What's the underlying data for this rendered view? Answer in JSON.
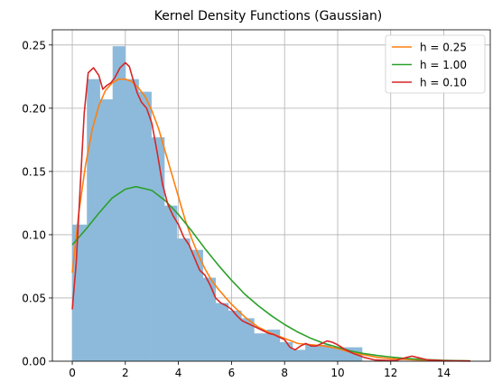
{
  "chart_data": {
    "type": "histogram+line",
    "title": "Kernel Density Functions (Gaussian)",
    "xlabel": "",
    "ylabel": "",
    "xlim": [
      -0.75,
      15.75
    ],
    "ylim": [
      0,
      0.262
    ],
    "grid": true,
    "legend_position": "top-right",
    "xticks": [
      0,
      2,
      4,
      6,
      8,
      10,
      12,
      14
    ],
    "yticks": [
      0.0,
      0.05,
      0.1,
      0.15,
      0.2,
      0.25
    ],
    "xtick_labels": [
      "0",
      "2",
      "4",
      "6",
      "8",
      "10",
      "12",
      "14"
    ],
    "ytick_labels": [
      "0.00",
      "0.05",
      "0.10",
      "0.15",
      "0.20",
      "0.25"
    ],
    "histogram": {
      "color": "#8dbada",
      "bin_edges": [
        0,
        0.55,
        1.04,
        1.52,
        2.0,
        2.5,
        2.98,
        3.47,
        3.95,
        4.43,
        4.92,
        5.4,
        5.88,
        6.37,
        6.85,
        7.33,
        7.82,
        8.3,
        8.78,
        9.27,
        9.75,
        10.92
      ],
      "heights": [
        0.108,
        0.223,
        0.207,
        0.249,
        0.223,
        0.213,
        0.177,
        0.123,
        0.097,
        0.088,
        0.066,
        0.046,
        0.04,
        0.034,
        0.022,
        0.025,
        0.015,
        0.009,
        0.013,
        0.013,
        0.011
      ]
    },
    "series": [
      {
        "name": "h = 0.25",
        "color": "#ff7f0e",
        "x": [
          0,
          0.25,
          0.5,
          0.75,
          1.0,
          1.25,
          1.5,
          1.75,
          2.0,
          2.25,
          2.5,
          2.75,
          3.0,
          3.25,
          3.5,
          3.75,
          4.0,
          4.25,
          4.5,
          4.75,
          5.0,
          5.25,
          5.5,
          5.75,
          6.0,
          6.25,
          6.5,
          6.75,
          7.0,
          7.5,
          8.0,
          8.5,
          9.0,
          9.5,
          10.0,
          10.5,
          11.0,
          11.5,
          12.0,
          12.5,
          13.0,
          14.0,
          15.0
        ],
        "y": [
          0.07,
          0.118,
          0.155,
          0.183,
          0.202,
          0.214,
          0.22,
          0.223,
          0.223,
          0.221,
          0.216,
          0.209,
          0.198,
          0.184,
          0.166,
          0.148,
          0.13,
          0.112,
          0.097,
          0.084,
          0.073,
          0.064,
          0.057,
          0.051,
          0.045,
          0.04,
          0.035,
          0.031,
          0.027,
          0.022,
          0.018,
          0.014,
          0.013,
          0.012,
          0.01,
          0.007,
          0.005,
          0.003,
          0.002,
          0.0015,
          0.001,
          0.0005,
          0.0002
        ]
      },
      {
        "name": "h = 1.00",
        "color": "#2ca02c",
        "x": [
          0,
          0.5,
          1.0,
          1.5,
          2.0,
          2.4,
          3.0,
          3.5,
          4.0,
          4.5,
          5.0,
          5.5,
          6.0,
          6.5,
          7.0,
          7.5,
          8.0,
          8.5,
          9.0,
          9.5,
          10.0,
          10.5,
          11.0,
          11.5,
          12.0,
          12.5,
          13.0,
          13.5,
          14.0,
          14.5,
          15.0
        ],
        "y": [
          0.092,
          0.104,
          0.117,
          0.129,
          0.136,
          0.138,
          0.135,
          0.127,
          0.116,
          0.103,
          0.089,
          0.076,
          0.064,
          0.053,
          0.044,
          0.036,
          0.029,
          0.023,
          0.018,
          0.014,
          0.011,
          0.008,
          0.006,
          0.0045,
          0.0033,
          0.0023,
          0.0016,
          0.0011,
          0.0007,
          0.0004,
          0.0002
        ]
      },
      {
        "name": "h = 0.10",
        "color": "#d62728",
        "x": [
          0,
          0.15,
          0.3,
          0.45,
          0.6,
          0.8,
          1.0,
          1.15,
          1.3,
          1.45,
          1.6,
          1.8,
          2.0,
          2.15,
          2.3,
          2.45,
          2.6,
          2.8,
          3.0,
          3.2,
          3.4,
          3.6,
          3.8,
          4.0,
          4.2,
          4.4,
          4.6,
          4.8,
          5.0,
          5.2,
          5.4,
          5.6,
          5.8,
          6.0,
          6.2,
          6.4,
          6.6,
          6.8,
          7.0,
          7.2,
          7.4,
          7.6,
          7.8,
          8.0,
          8.2,
          8.4,
          8.6,
          8.8,
          9.0,
          9.2,
          9.4,
          9.6,
          9.8,
          10.0,
          10.3,
          10.6,
          11.0,
          11.4,
          11.8,
          12.2,
          12.6,
          12.8,
          13.0,
          13.4,
          14.0,
          14.5,
          15.0
        ],
        "y": [
          0.041,
          0.078,
          0.138,
          0.196,
          0.228,
          0.232,
          0.226,
          0.215,
          0.218,
          0.22,
          0.224,
          0.232,
          0.236,
          0.233,
          0.222,
          0.212,
          0.205,
          0.2,
          0.188,
          0.165,
          0.14,
          0.124,
          0.115,
          0.108,
          0.098,
          0.092,
          0.082,
          0.072,
          0.068,
          0.06,
          0.05,
          0.046,
          0.044,
          0.041,
          0.036,
          0.032,
          0.03,
          0.028,
          0.026,
          0.024,
          0.022,
          0.021,
          0.019,
          0.017,
          0.011,
          0.009,
          0.012,
          0.014,
          0.012,
          0.012,
          0.014,
          0.016,
          0.015,
          0.013,
          0.009,
          0.006,
          0.003,
          0.001,
          0.0007,
          0.0006,
          0.003,
          0.004,
          0.003,
          0.001,
          0.0004,
          0.0002,
          0.0001
        ]
      }
    ]
  }
}
